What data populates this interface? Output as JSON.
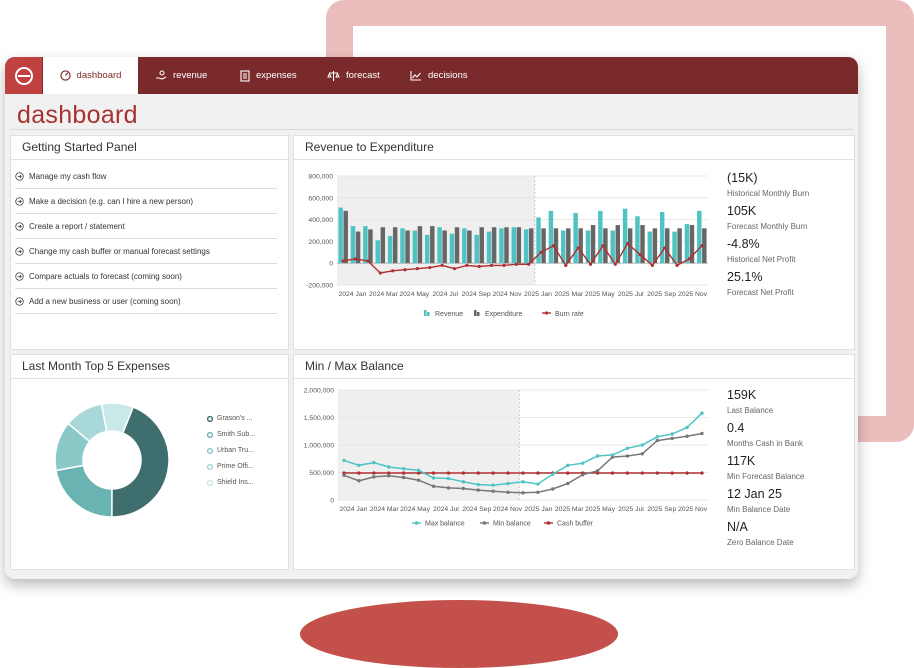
{
  "nav": {
    "tabs": [
      {
        "label": "dashboard"
      },
      {
        "label": "revenue"
      },
      {
        "label": "expenses"
      },
      {
        "label": "forecast"
      },
      {
        "label": "decisions"
      }
    ]
  },
  "page": {
    "title": "dashboard"
  },
  "getting_started": {
    "title": "Getting Started Panel",
    "items": [
      "Manage my cash flow",
      "Make a decision (e.g. can I hire a new person)",
      "Create a report / statement",
      "Change my cash buffer or manual forecast settings",
      "Compare actuals to forecast (coming soon)",
      "Add a new business or user (coming soon)"
    ]
  },
  "revenue_panel": {
    "title": "Revenue to Expenditure",
    "stats": [
      {
        "value": "(15K)",
        "label": "Historical Monthly Burn"
      },
      {
        "value": "105K",
        "label": "Forecast Monthly Burn"
      },
      {
        "value": "-4.8%",
        "label": "Historical Net Profit"
      },
      {
        "value": "25.1%",
        "label": "Forecast Net Profit"
      }
    ]
  },
  "expenses_panel": {
    "title": "Last Month Top 5 Expenses",
    "legend": [
      "Grason's ...",
      "Smith Sub...",
      "Urban Tru...",
      "Prime Offi...",
      "Shield Ins..."
    ]
  },
  "balance_panel": {
    "title": "Min / Max Balance",
    "stats": [
      {
        "value": "159K",
        "label": "Last Balance"
      },
      {
        "value": "0.4",
        "label": "Months Cash in Bank"
      },
      {
        "value": "117K",
        "label": "Min Forecast Balance"
      },
      {
        "value": "12 Jan 25",
        "label": "Min Balance Date"
      },
      {
        "value": "N/A",
        "label": "Zero Balance Date"
      }
    ]
  },
  "colors": {
    "brand": "#7a2a2a",
    "accent": "#c04240",
    "teal": "#4fc3c3",
    "dark_grey": "#666666",
    "burn": "#b03030"
  },
  "chart_data": [
    {
      "type": "bar",
      "title": "Revenue to Expenditure",
      "ylim": [
        -200000,
        800000
      ],
      "y_ticks": [
        "800,000",
        "600,000",
        "400,000",
        "200,000",
        "0",
        "-200,000"
      ],
      "x_tick_labels": [
        "2024 Jan",
        "2024 Mar",
        "2024 May",
        "2024 Jul",
        "2024 Sep",
        "2024 Nov",
        "2025 Jan",
        "2025 Mar",
        "2025 May",
        "2025 Jul",
        "2025 Sep",
        "2025 Nov"
      ],
      "legend": [
        "Revenue",
        "Expenditure",
        "Burn rate"
      ],
      "series": [
        {
          "name": "Revenue",
          "values": [
            510000,
            340000,
            340000,
            210000,
            250000,
            320000,
            300000,
            260000,
            330000,
            270000,
            320000,
            260000,
            290000,
            320000,
            330000,
            310000,
            420000,
            480000,
            300000,
            460000,
            300000,
            480000,
            300000,
            500000,
            430000,
            290000,
            470000,
            290000,
            360000,
            480000
          ]
        },
        {
          "name": "Expenditure",
          "values": [
            480000,
            290000,
            310000,
            330000,
            330000,
            300000,
            340000,
            340000,
            300000,
            330000,
            300000,
            330000,
            330000,
            330000,
            330000,
            320000,
            320000,
            320000,
            320000,
            320000,
            350000,
            320000,
            350000,
            320000,
            350000,
            320000,
            320000,
            320000,
            350000,
            320000
          ]
        },
        {
          "name": "Burn rate",
          "values": [
            20000,
            40000,
            20000,
            -90000,
            -70000,
            -60000,
            -50000,
            -40000,
            -20000,
            -50000,
            -20000,
            -30000,
            -20000,
            -20000,
            -10000,
            -10000,
            100000,
            160000,
            -20000,
            140000,
            -10000,
            160000,
            -10000,
            180000,
            80000,
            -20000,
            140000,
            -20000,
            40000,
            160000
          ]
        }
      ]
    },
    {
      "type": "line",
      "title": "Min / Max Balance",
      "ylim": [
        0,
        2000000
      ],
      "y_ticks": [
        "2,000,000",
        "1,500,000",
        "1,000,000",
        "500,000",
        "0"
      ],
      "x_tick_labels": [
        "2024 Jan",
        "2024 Mar",
        "2024 May",
        "2024 Jul",
        "2024 Sep",
        "2024 Nov",
        "2025 Jan",
        "2025 Mar",
        "2025 May",
        "2025 Jul",
        "2025 Sep",
        "2025 Nov"
      ],
      "legend": [
        "Max balance",
        "Min balance",
        "Cash buffer"
      ],
      "series": [
        {
          "name": "Max balance",
          "values": [
            720000,
            630000,
            680000,
            600000,
            570000,
            540000,
            400000,
            390000,
            330000,
            280000,
            270000,
            300000,
            330000,
            290000,
            470000,
            630000,
            670000,
            800000,
            820000,
            940000,
            1000000,
            1150000,
            1200000,
            1320000,
            1580000
          ]
        },
        {
          "name": "Min balance",
          "values": [
            450000,
            350000,
            420000,
            440000,
            410000,
            360000,
            250000,
            220000,
            210000,
            180000,
            160000,
            140000,
            130000,
            140000,
            200000,
            300000,
            460000,
            530000,
            780000,
            800000,
            840000,
            1080000,
            1120000,
            1160000,
            1210000
          ]
        },
        {
          "name": "Cash buffer",
          "values": [
            490000,
            490000,
            490000,
            490000,
            490000,
            490000,
            490000,
            490000,
            490000,
            490000,
            490000,
            490000,
            490000,
            490000,
            490000,
            490000,
            490000,
            490000,
            490000,
            490000,
            490000,
            490000,
            490000,
            490000,
            490000
          ]
        }
      ]
    },
    {
      "type": "pie",
      "title": "Last Month Top 5 Expenses",
      "labels": [
        "Grason's ...",
        "Smith Sub...",
        "Urban Tru...",
        "Prime Offi...",
        "Shield Ins..."
      ],
      "values": [
        44,
        22,
        14,
        11,
        9
      ],
      "colors": [
        "#3f6e6e",
        "#6ab3b3",
        "#8bc9c9",
        "#a9d8d8",
        "#c9e8e8"
      ]
    }
  ]
}
